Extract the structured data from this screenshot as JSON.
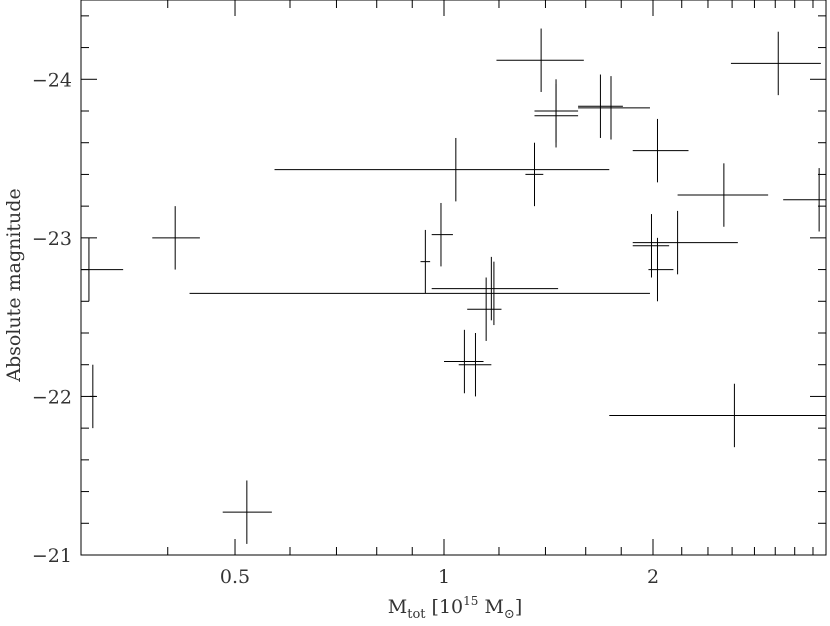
{
  "chart_data": {
    "type": "scatter",
    "title": "",
    "xlabel": {
      "prefix": "M",
      "subscript": "tot",
      "bracket_open": " [10",
      "superscript": "15",
      "unit": " M",
      "sun_symbol": "⊙",
      "bracket_close": "]"
    },
    "ylabel": "Absolute magnitude",
    "x_scale": "log",
    "xlim": [
      0.3,
      3.55
    ],
    "ylim": [
      -21,
      -24.5
    ],
    "x_ticks_major": [
      0.5,
      1,
      2
    ],
    "x_tick_labels": [
      "0.5",
      "1",
      "2"
    ],
    "y_ticks_major": [
      -21,
      -22,
      -23,
      -24
    ],
    "y_tick_labels": [
      "−21",
      "−22",
      "−23",
      "−24"
    ],
    "grid": false,
    "points": [
      {
        "x": 0.308,
        "y": -22.8,
        "xlo": 0.3,
        "xhi": 0.345,
        "yerr": 0.2
      },
      {
        "x": 0.312,
        "y": -22.0,
        "xlo": 0.309,
        "xhi": 0.315,
        "yerr": 0.2
      },
      {
        "x": 0.41,
        "y": -23.0,
        "xlo": 0.38,
        "xhi": 0.445,
        "yerr": 0.2
      },
      {
        "x": 0.52,
        "y": -21.27,
        "xlo": 0.48,
        "xhi": 0.565,
        "yerr": 0.2
      },
      {
        "x": 0.94,
        "y": -22.85,
        "xlo": 0.925,
        "xhi": 0.955,
        "yerr": 0.2
      },
      {
        "x": 0.99,
        "y": -23.02,
        "xlo": 0.96,
        "xhi": 1.03,
        "yerr": 0.2
      },
      {
        "x": 1.04,
        "y": -23.43,
        "xlo": 0.57,
        "xhi": 1.73,
        "yerr": 0.2
      },
      {
        "x": 1.07,
        "y": -22.22,
        "xlo": 1.0,
        "xhi": 1.14,
        "yerr": 0.2
      },
      {
        "x": 1.11,
        "y": -22.2,
        "xlo": 1.05,
        "xhi": 1.17,
        "yerr": 0.2
      },
      {
        "x": 1.15,
        "y": -22.55,
        "xlo": 1.08,
        "xhi": 1.21,
        "yerr": 0.2
      },
      {
        "x": 1.17,
        "y": -22.68,
        "xlo": 0.96,
        "xhi": 1.46,
        "yerr": 0.2
      },
      {
        "x": 1.18,
        "y": -22.65,
        "xlo": 0.43,
        "xhi": 1.98,
        "yerr": 0.2
      },
      {
        "x": 1.35,
        "y": -23.4,
        "xlo": 1.31,
        "xhi": 1.39,
        "yerr": 0.2
      },
      {
        "x": 1.38,
        "y": -24.12,
        "xlo": 1.19,
        "xhi": 1.59,
        "yerr": 0.2
      },
      {
        "x": 1.45,
        "y": -23.8,
        "xlo": 1.35,
        "xhi": 1.56,
        "yerr": 0.2
      },
      {
        "x": 1.45,
        "y": -23.77,
        "xlo": 1.35,
        "xhi": 1.56,
        "yerr": 0.2
      },
      {
        "x": 1.68,
        "y": -23.83,
        "xlo": 1.56,
        "xhi": 1.81,
        "yerr": 0.2
      },
      {
        "x": 1.74,
        "y": -23.82,
        "xlo": 1.56,
        "xhi": 1.98,
        "yerr": 0.2
      },
      {
        "x": 1.99,
        "y": -22.95,
        "xlo": 1.87,
        "xhi": 2.11,
        "yerr": 0.2
      },
      {
        "x": 2.03,
        "y": -22.8,
        "xlo": 1.97,
        "xhi": 2.14,
        "yerr": 0.2
      },
      {
        "x": 2.03,
        "y": -23.55,
        "xlo": 1.87,
        "xhi": 2.25,
        "yerr": 0.2
      },
      {
        "x": 2.17,
        "y": -22.97,
        "xlo": 1.87,
        "xhi": 2.65,
        "yerr": 0.2
      },
      {
        "x": 2.53,
        "y": -23.27,
        "xlo": 2.17,
        "xhi": 2.93,
        "yerr": 0.2
      },
      {
        "x": 2.62,
        "y": -21.88,
        "xlo": 1.73,
        "xhi": 3.55,
        "yerr": 0.2
      },
      {
        "x": 3.03,
        "y": -24.1,
        "xlo": 2.59,
        "xhi": 3.49,
        "yerr": 0.2
      },
      {
        "x": 3.47,
        "y": -23.24,
        "xlo": 3.08,
        "xhi": 3.55,
        "yerr": 0.2
      }
    ]
  }
}
